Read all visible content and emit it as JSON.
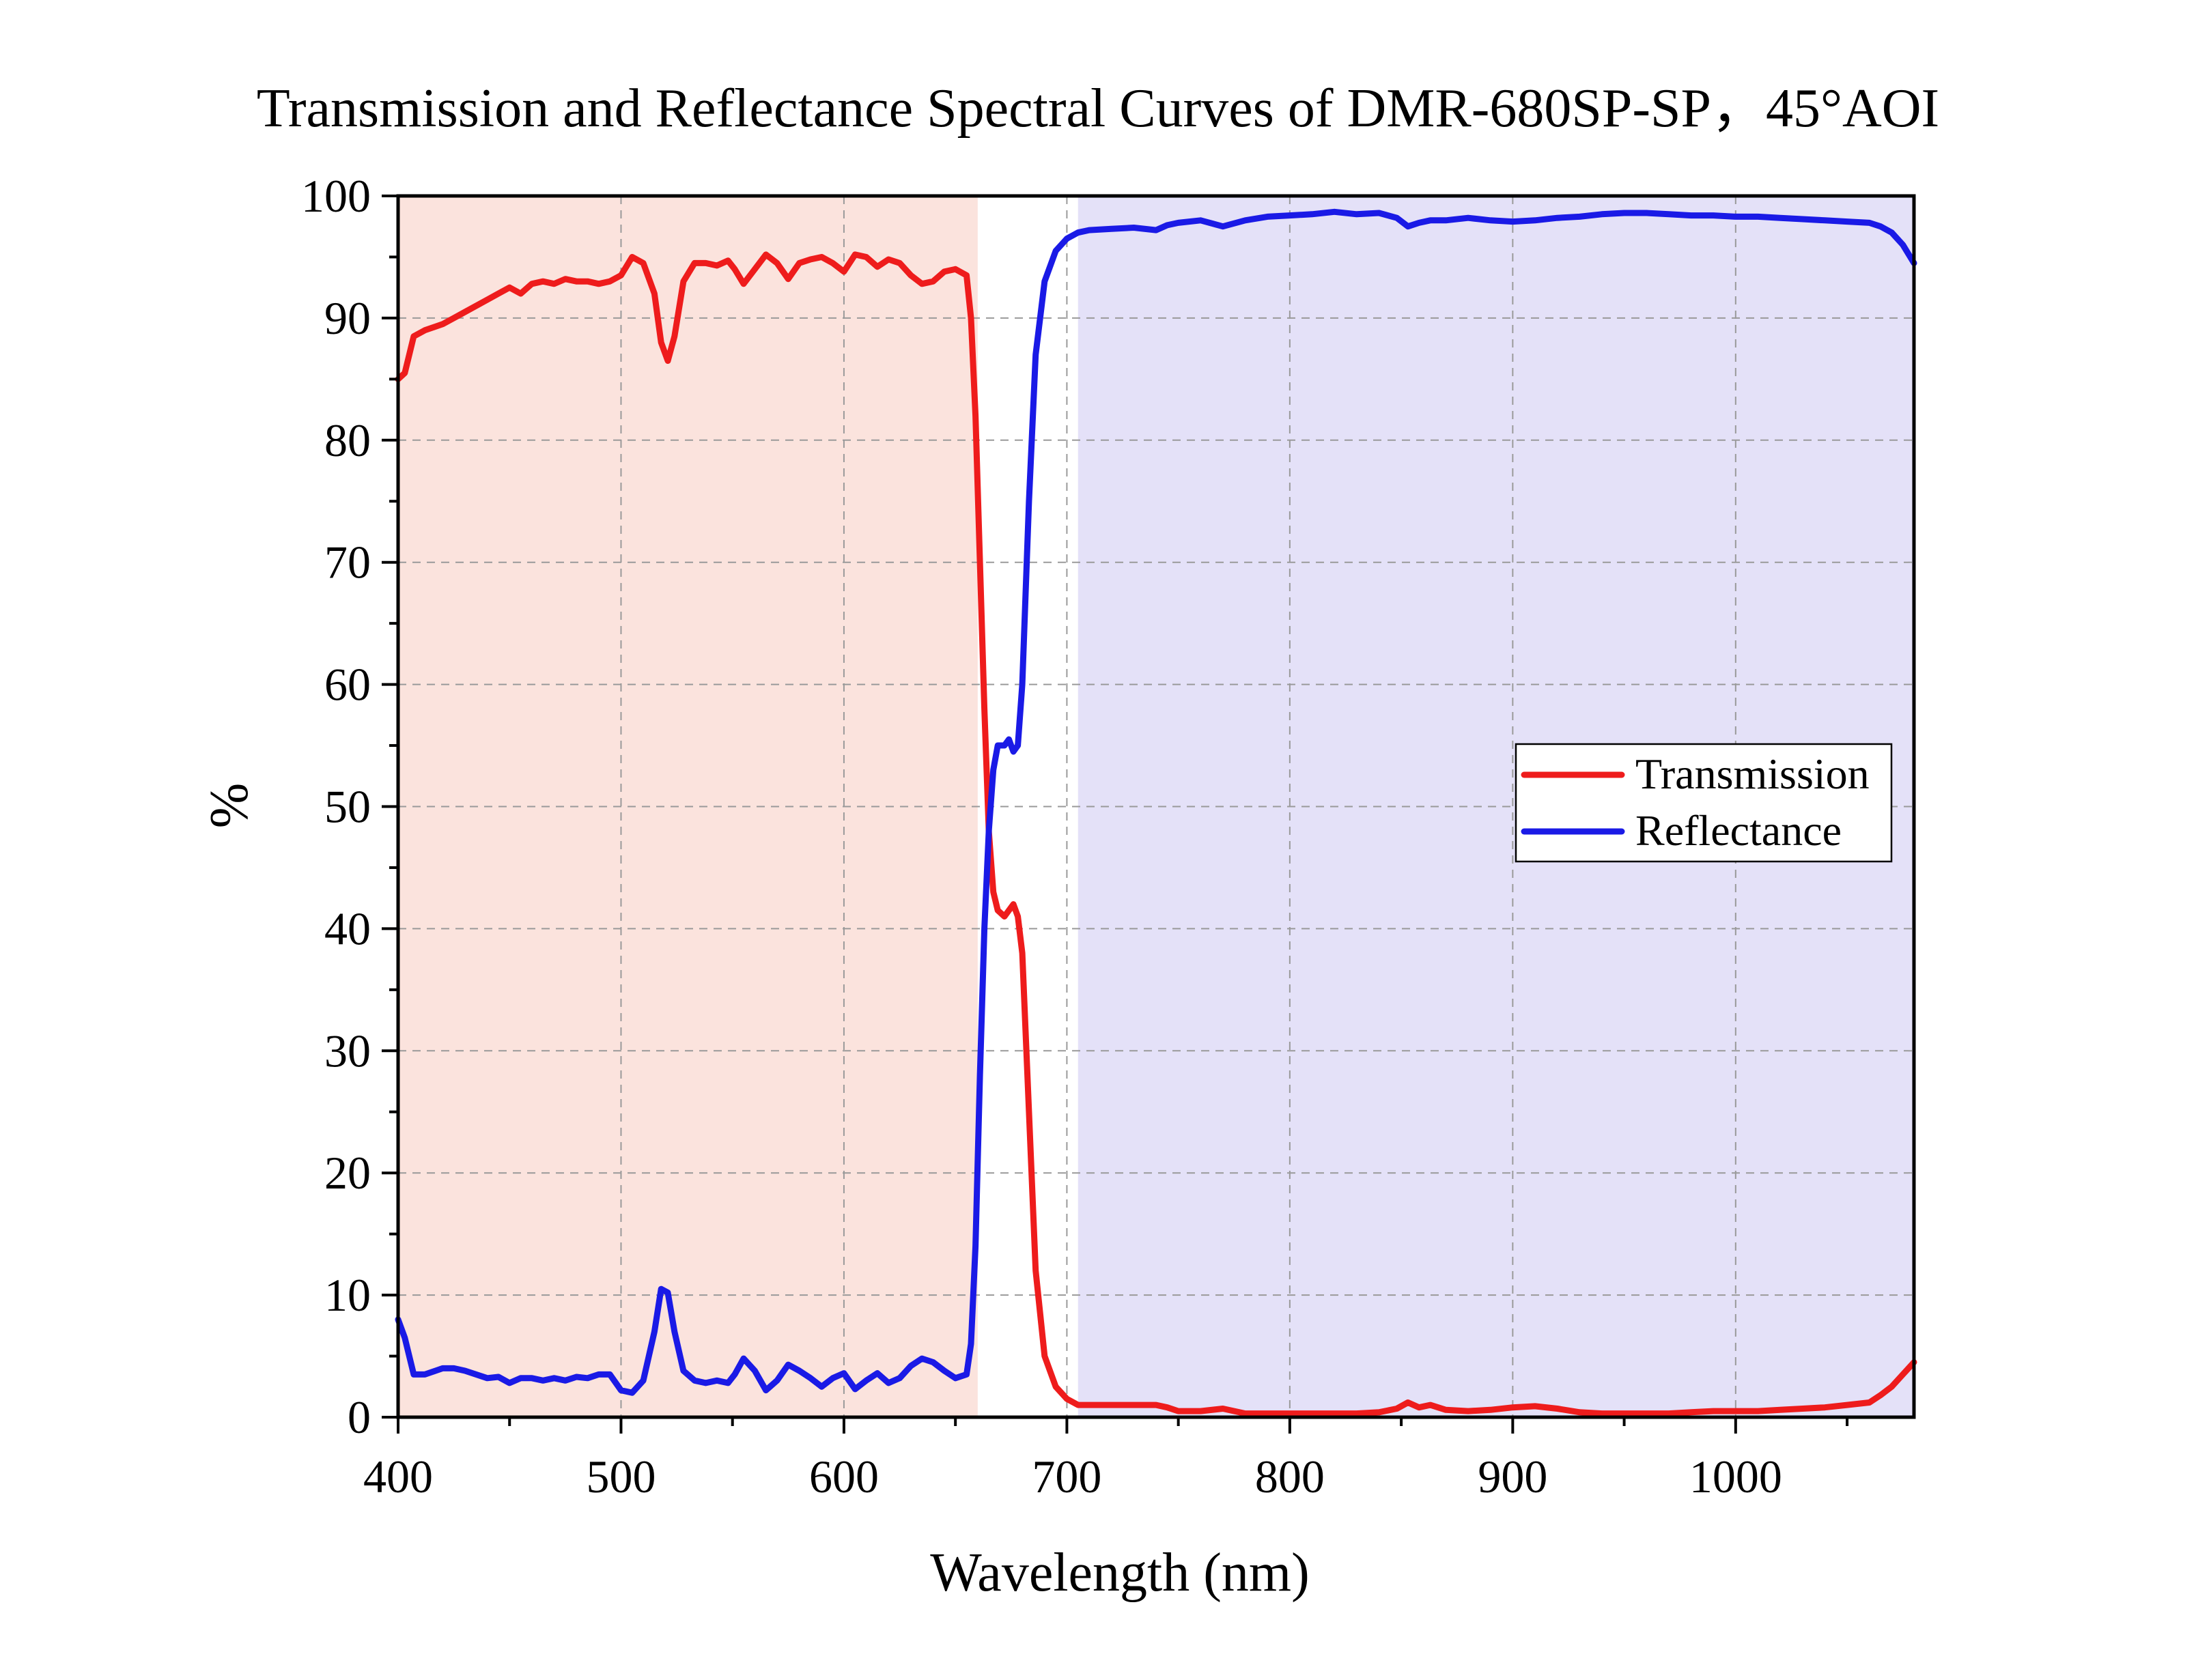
{
  "chart_data": {
    "type": "line",
    "title": "Transmission and Reflectance Spectral Curves of DMR-680SP-SP，45°AOI",
    "xlabel": "Wavelength (nm)",
    "ylabel": "%",
    "xlim": [
      400,
      1080
    ],
    "ylim": [
      0,
      100
    ],
    "xticks": [
      "400",
      "500",
      "600",
      "700",
      "800",
      "900",
      "1000"
    ],
    "xtick_values": [
      400,
      500,
      600,
      700,
      800,
      900,
      1000
    ],
    "yticks": [
      "0",
      "10",
      "20",
      "30",
      "40",
      "50",
      "60",
      "70",
      "80",
      "90",
      "100"
    ],
    "ytick_values": [
      0,
      10,
      20,
      30,
      40,
      50,
      60,
      70,
      80,
      90,
      100
    ],
    "grid": true,
    "legend_position": "right-middle",
    "bands": [
      {
        "x": [
          400,
          660
        ],
        "color": "#fbe3dd"
      },
      {
        "x": [
          705,
          1080
        ],
        "color": "#e4e1f8"
      }
    ],
    "series": [
      {
        "name": "Transmission",
        "color": "#ee1c1c",
        "x": [
          400,
          403,
          407,
          412,
          420,
          425,
          430,
          440,
          445,
          450,
          455,
          460,
          465,
          470,
          475,
          480,
          485,
          490,
          495,
          500,
          505,
          510,
          515,
          518,
          521,
          524,
          528,
          533,
          538,
          543,
          548,
          551,
          555,
          560,
          565,
          570,
          575,
          580,
          585,
          590,
          595,
          600,
          605,
          610,
          615,
          620,
          625,
          630,
          635,
          640,
          645,
          650,
          655,
          657,
          659,
          661,
          663,
          665,
          667,
          669,
          672,
          674,
          676,
          678,
          680,
          683,
          686,
          690,
          695,
          700,
          705,
          710,
          720,
          730,
          740,
          745,
          750,
          760,
          770,
          780,
          790,
          800,
          810,
          820,
          830,
          840,
          848,
          853,
          858,
          863,
          870,
          880,
          890,
          900,
          910,
          920,
          930,
          940,
          950,
          960,
          970,
          980,
          990,
          1000,
          1010,
          1020,
          1030,
          1040,
          1050,
          1060,
          1065,
          1070,
          1075,
          1080
        ],
        "values": [
          85,
          85.5,
          88.5,
          89,
          89.5,
          90,
          90.5,
          91.5,
          92,
          92.5,
          92,
          92.8,
          93,
          92.8,
          93.2,
          93,
          93,
          92.8,
          93,
          93.5,
          95,
          94.5,
          92,
          88,
          86.5,
          88.5,
          93,
          94.5,
          94.5,
          94.3,
          94.7,
          94,
          92.8,
          94,
          95.2,
          94.5,
          93.2,
          94.5,
          94.8,
          95,
          94.5,
          93.8,
          95.2,
          95,
          94.2,
          94.8,
          94.5,
          93.5,
          92.8,
          93,
          93.8,
          94,
          93.5,
          90,
          82,
          70,
          58,
          48,
          43,
          41.5,
          41,
          41.5,
          42,
          41,
          38,
          25,
          12,
          5,
          2.5,
          1.5,
          1,
          1,
          1,
          1,
          1,
          0.8,
          0.5,
          0.5,
          0.7,
          0.3,
          0.3,
          0.3,
          0.3,
          0.3,
          0.3,
          0.4,
          0.7,
          1.2,
          0.8,
          1,
          0.6,
          0.5,
          0.6,
          0.8,
          0.9,
          0.7,
          0.4,
          0.3,
          0.3,
          0.3,
          0.3,
          0.4,
          0.5,
          0.5,
          0.5,
          0.6,
          0.7,
          0.8,
          1,
          1.2,
          1.8,
          2.5,
          3.5,
          4.5
        ]
      },
      {
        "name": "Reflectance",
        "color": "#1a1ae6",
        "x": [
          400,
          403,
          407,
          412,
          420,
          425,
          430,
          440,
          445,
          450,
          455,
          460,
          465,
          470,
          475,
          480,
          485,
          490,
          495,
          500,
          505,
          510,
          515,
          518,
          521,
          524,
          528,
          533,
          538,
          543,
          548,
          551,
          555,
          560,
          565,
          570,
          575,
          580,
          585,
          590,
          595,
          600,
          605,
          610,
          615,
          620,
          625,
          630,
          635,
          640,
          645,
          650,
          655,
          657,
          659,
          661,
          663,
          665,
          667,
          669,
          672,
          674,
          676,
          678,
          680,
          683,
          686,
          690,
          695,
          700,
          705,
          710,
          720,
          730,
          740,
          745,
          750,
          760,
          770,
          780,
          790,
          800,
          810,
          820,
          830,
          840,
          848,
          853,
          858,
          863,
          870,
          880,
          890,
          900,
          910,
          920,
          930,
          940,
          950,
          960,
          970,
          980,
          990,
          1000,
          1010,
          1020,
          1030,
          1040,
          1050,
          1060,
          1065,
          1070,
          1075,
          1080
        ],
        "values": [
          8,
          6.5,
          3.5,
          3.5,
          4,
          4,
          3.8,
          3.2,
          3.3,
          2.8,
          3.2,
          3.2,
          3,
          3.2,
          3,
          3.3,
          3.2,
          3.5,
          3.5,
          2.2,
          2,
          3,
          7,
          10.5,
          10.2,
          7,
          3.8,
          3,
          2.8,
          3,
          2.8,
          3.5,
          4.8,
          3.8,
          2.2,
          3,
          4.3,
          3.8,
          3.2,
          2.5,
          3.2,
          3.6,
          2.3,
          3,
          3.6,
          2.8,
          3.2,
          4.2,
          4.8,
          4.5,
          3.8,
          3.2,
          3.5,
          6,
          14,
          28,
          40,
          48,
          53,
          55,
          55,
          55.5,
          54.5,
          55,
          60,
          75,
          87,
          93,
          95.5,
          96.5,
          97,
          97.2,
          97.3,
          97.4,
          97.2,
          97.6,
          97.8,
          98,
          97.5,
          98,
          98.3,
          98.4,
          98.5,
          98.7,
          98.5,
          98.6,
          98.2,
          97.5,
          97.8,
          98,
          98,
          98.2,
          98,
          97.9,
          98,
          98.2,
          98.3,
          98.5,
          98.6,
          98.6,
          98.5,
          98.4,
          98.4,
          98.3,
          98.3,
          98.2,
          98.1,
          98,
          97.9,
          97.8,
          97.5,
          97,
          96,
          94.5
        ]
      }
    ]
  }
}
